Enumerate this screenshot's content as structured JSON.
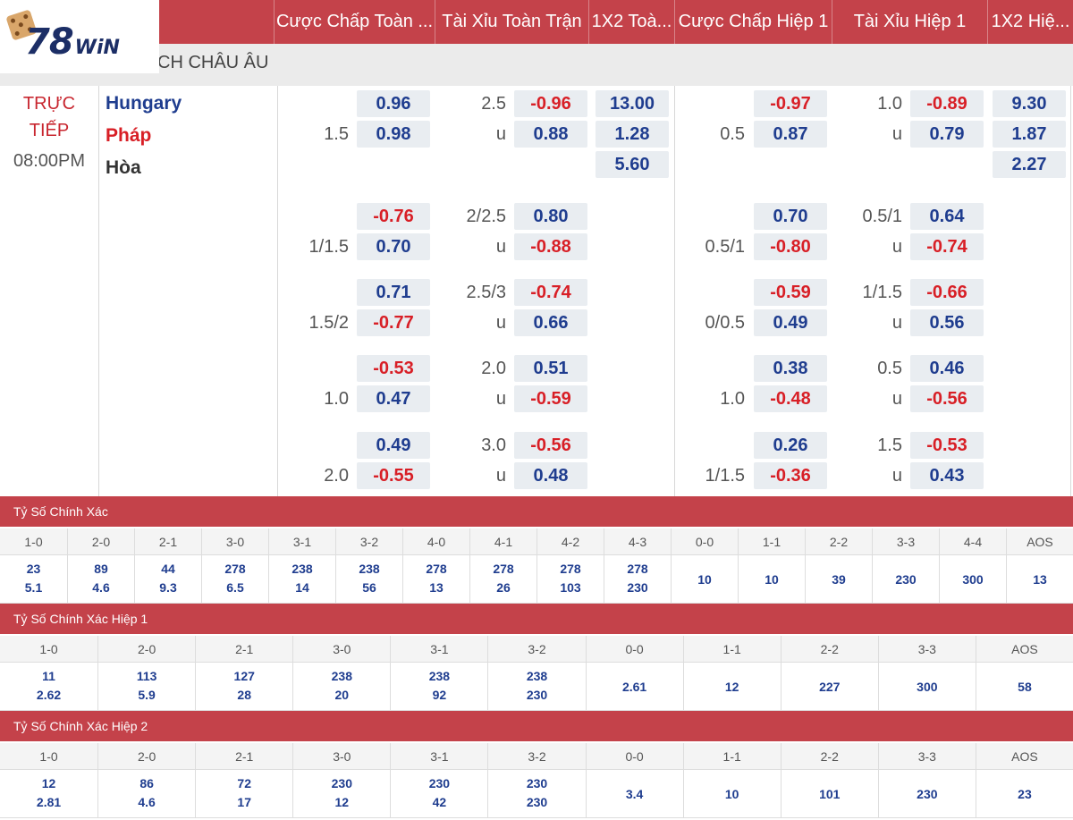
{
  "header": {
    "columns": [
      "Cược Chấp Toàn ...",
      "Tài Xỉu Toàn Trận",
      "1X2 Toà...",
      "Cược Chấp Hiệp 1",
      "Tài Xỉu Hiệp 1",
      "1X2 Hiệ..."
    ]
  },
  "logo": {
    "text": "78",
    "suffix": "WiN"
  },
  "league": {
    "name": "CH CHÂU ÂU"
  },
  "match": {
    "status_line1": "TRỰC",
    "status_line2": "TIẾP",
    "time": "08:00PM",
    "home": "Hungary",
    "away": "Pháp",
    "draw": "Hòa"
  },
  "odds_rows": [
    {
      "ft_hdp_line": "1.5",
      "ft_hdp_home": "0.96",
      "ft_hdp_away": "0.98",
      "ft_ou_line": "2.5",
      "ft_ou_u": "u",
      "ft_ou_over": "-0.96",
      "ft_ou_under": "0.88",
      "ft_1x2": [
        "13.00",
        "1.28",
        "5.60"
      ],
      "h1_hdp_line": "0.5",
      "h1_hdp_home": "-0.97",
      "h1_hdp_away": "0.87",
      "h1_ou_line": "1.0",
      "h1_ou_u": "u",
      "h1_ou_over": "-0.89",
      "h1_ou_under": "0.79",
      "h1_1x2": [
        "9.30",
        "1.87",
        "2.27"
      ]
    },
    {
      "ft_hdp_line": "1/1.5",
      "ft_hdp_home": "-0.76",
      "ft_hdp_away": "0.70",
      "ft_ou_line": "2/2.5",
      "ft_ou_u": "u",
      "ft_ou_over": "0.80",
      "ft_ou_under": "-0.88",
      "h1_hdp_line": "0.5/1",
      "h1_hdp_home": "0.70",
      "h1_hdp_away": "-0.80",
      "h1_ou_line": "0.5/1",
      "h1_ou_u": "u",
      "h1_ou_over": "0.64",
      "h1_ou_under": "-0.74"
    },
    {
      "ft_hdp_line": "1.5/2",
      "ft_hdp_home": "0.71",
      "ft_hdp_away": "-0.77",
      "ft_ou_line": "2.5/3",
      "ft_ou_u": "u",
      "ft_ou_over": "-0.74",
      "ft_ou_under": "0.66",
      "h1_hdp_line": "0/0.5",
      "h1_hdp_home": "-0.59",
      "h1_hdp_away": "0.49",
      "h1_ou_line": "1/1.5",
      "h1_ou_u": "u",
      "h1_ou_over": "-0.66",
      "h1_ou_under": "0.56"
    },
    {
      "ft_hdp_line": "1.0",
      "ft_hdp_home": "-0.53",
      "ft_hdp_away": "0.47",
      "ft_ou_line": "2.0",
      "ft_ou_u": "u",
      "ft_ou_over": "0.51",
      "ft_ou_under": "-0.59",
      "h1_hdp_line": "1.0",
      "h1_hdp_home": "0.38",
      "h1_hdp_away": "-0.48",
      "h1_ou_line": "0.5",
      "h1_ou_u": "u",
      "h1_ou_over": "0.46",
      "h1_ou_under": "-0.56"
    },
    {
      "ft_hdp_line": "2.0",
      "ft_hdp_home": "0.49",
      "ft_hdp_away": "-0.55",
      "ft_ou_line": "3.0",
      "ft_ou_u": "u",
      "ft_ou_over": "-0.56",
      "ft_ou_under": "0.48",
      "h1_hdp_line": "1/1.5",
      "h1_hdp_home": "0.26",
      "h1_hdp_away": "-0.36",
      "h1_ou_line": "1.5",
      "h1_ou_u": "u",
      "h1_ou_over": "-0.53",
      "h1_ou_under": "0.43"
    }
  ],
  "correct_score_ft": {
    "title": "Tỷ Số Chính Xác",
    "labels": [
      "1-0",
      "2-0",
      "2-1",
      "3-0",
      "3-1",
      "3-2",
      "4-0",
      "4-1",
      "4-2",
      "4-3",
      "0-0",
      "1-1",
      "2-2",
      "3-3",
      "4-4",
      "AOS"
    ],
    "home": [
      "23",
      "89",
      "44",
      "278",
      "238",
      "238",
      "278",
      "278",
      "278",
      "278",
      "10",
      "10",
      "39",
      "230",
      "300",
      "13"
    ],
    "away": [
      "5.1",
      "4.6",
      "9.3",
      "6.5",
      "14",
      "56",
      "13",
      "26",
      "103",
      "230",
      "",
      "",
      "",
      "",
      "",
      ""
    ]
  },
  "correct_score_h1": {
    "title": "Tỷ Số Chính Xác Hiệp 1",
    "labels": [
      "1-0",
      "2-0",
      "2-1",
      "3-0",
      "3-1",
      "3-2",
      "0-0",
      "1-1",
      "2-2",
      "3-3",
      "AOS"
    ],
    "home": [
      "11",
      "113",
      "127",
      "238",
      "238",
      "238",
      "2.61",
      "12",
      "227",
      "300",
      "58"
    ],
    "away": [
      "2.62",
      "5.9",
      "28",
      "20",
      "92",
      "230",
      "",
      "",
      "",
      "",
      ""
    ]
  },
  "correct_score_h2": {
    "title": "Tỷ Số Chính Xác Hiệp 2",
    "labels": [
      "1-0",
      "2-0",
      "2-1",
      "3-0",
      "3-1",
      "3-2",
      "0-0",
      "1-1",
      "2-2",
      "3-3",
      "AOS"
    ],
    "home": [
      "12",
      "86",
      "72",
      "230",
      "230",
      "230",
      "3.4",
      "10",
      "101",
      "230",
      "23"
    ],
    "away": [
      "2.81",
      "4.6",
      "17",
      "12",
      "42",
      "230",
      "",
      "",
      "",
      "",
      ""
    ]
  },
  "colors": {
    "header_red": "#c4424a",
    "positive_blue": "#1f3d8f",
    "negative_red": "#d81f26",
    "live_red": "#c8262f"
  }
}
